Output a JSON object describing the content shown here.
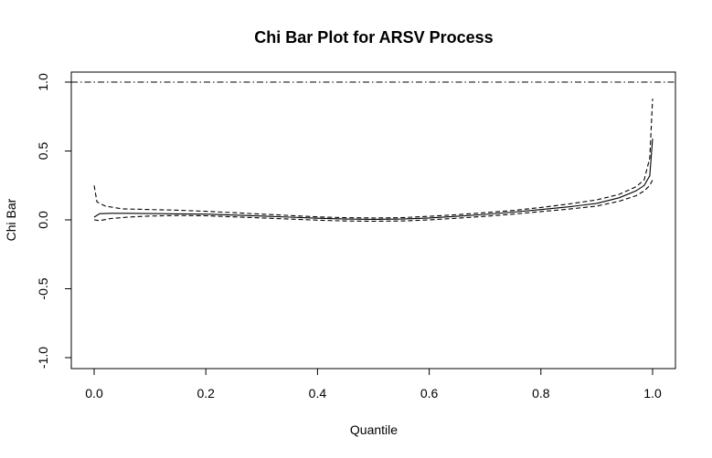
{
  "chart_data": {
    "type": "line",
    "title": "Chi Bar Plot for ARSV Process",
    "xlabel": "Quantile",
    "ylabel": "Chi Bar",
    "xlim": [
      0,
      1
    ],
    "ylim": [
      -1,
      1
    ],
    "x_ticks": [
      "0.0",
      "0.2",
      "0.4",
      "0.6",
      "0.8",
      "1.0"
    ],
    "y_ticks": [
      "-1.0",
      "-0.5",
      "0.0",
      "0.5",
      "1.0"
    ],
    "reference_line": {
      "y": 1.0,
      "style": "dotdash"
    },
    "series": [
      {
        "style": "solid",
        "x": [
          0.0,
          0.01,
          0.03,
          0.06,
          0.1,
          0.15,
          0.2,
          0.25,
          0.3,
          0.35,
          0.4,
          0.45,
          0.5,
          0.55,
          0.6,
          0.65,
          0.7,
          0.75,
          0.8,
          0.85,
          0.9,
          0.94,
          0.97,
          0.985,
          0.995,
          1.0
        ],
        "y": [
          0.02,
          0.045,
          0.048,
          0.048,
          0.046,
          0.044,
          0.042,
          0.035,
          0.028,
          0.02,
          0.012,
          0.006,
          0.004,
          0.006,
          0.014,
          0.026,
          0.04,
          0.056,
          0.075,
          0.095,
          0.12,
          0.16,
          0.21,
          0.25,
          0.32,
          0.59
        ]
      },
      {
        "style": "dashed",
        "x": [
          0.0,
          0.005,
          0.02,
          0.05,
          0.1,
          0.15,
          0.2,
          0.25,
          0.3,
          0.35,
          0.4,
          0.45,
          0.5,
          0.55,
          0.6,
          0.65,
          0.7,
          0.75,
          0.8,
          0.85,
          0.9,
          0.94,
          0.97,
          0.985,
          0.995,
          1.0
        ],
        "y": [
          0.25,
          0.13,
          0.1,
          0.08,
          0.075,
          0.07,
          0.062,
          0.052,
          0.042,
          0.032,
          0.022,
          0.016,
          0.014,
          0.016,
          0.026,
          0.038,
          0.052,
          0.068,
          0.09,
          0.115,
          0.145,
          0.185,
          0.24,
          0.29,
          0.45,
          0.88
        ]
      },
      {
        "style": "dashed",
        "x": [
          0.0,
          0.01,
          0.03,
          0.06,
          0.1,
          0.15,
          0.2,
          0.25,
          0.3,
          0.35,
          0.4,
          0.45,
          0.5,
          0.55,
          0.6,
          0.65,
          0.7,
          0.75,
          0.8,
          0.85,
          0.9,
          0.94,
          0.97,
          0.985,
          0.995,
          1.0
        ],
        "y": [
          0.0,
          -0.005,
          0.01,
          0.02,
          0.028,
          0.032,
          0.03,
          0.022,
          0.014,
          0.006,
          -0.002,
          -0.008,
          -0.01,
          -0.008,
          0.0,
          0.012,
          0.026,
          0.042,
          0.06,
          0.078,
          0.1,
          0.135,
          0.175,
          0.21,
          0.25,
          0.29
        ]
      }
    ]
  }
}
